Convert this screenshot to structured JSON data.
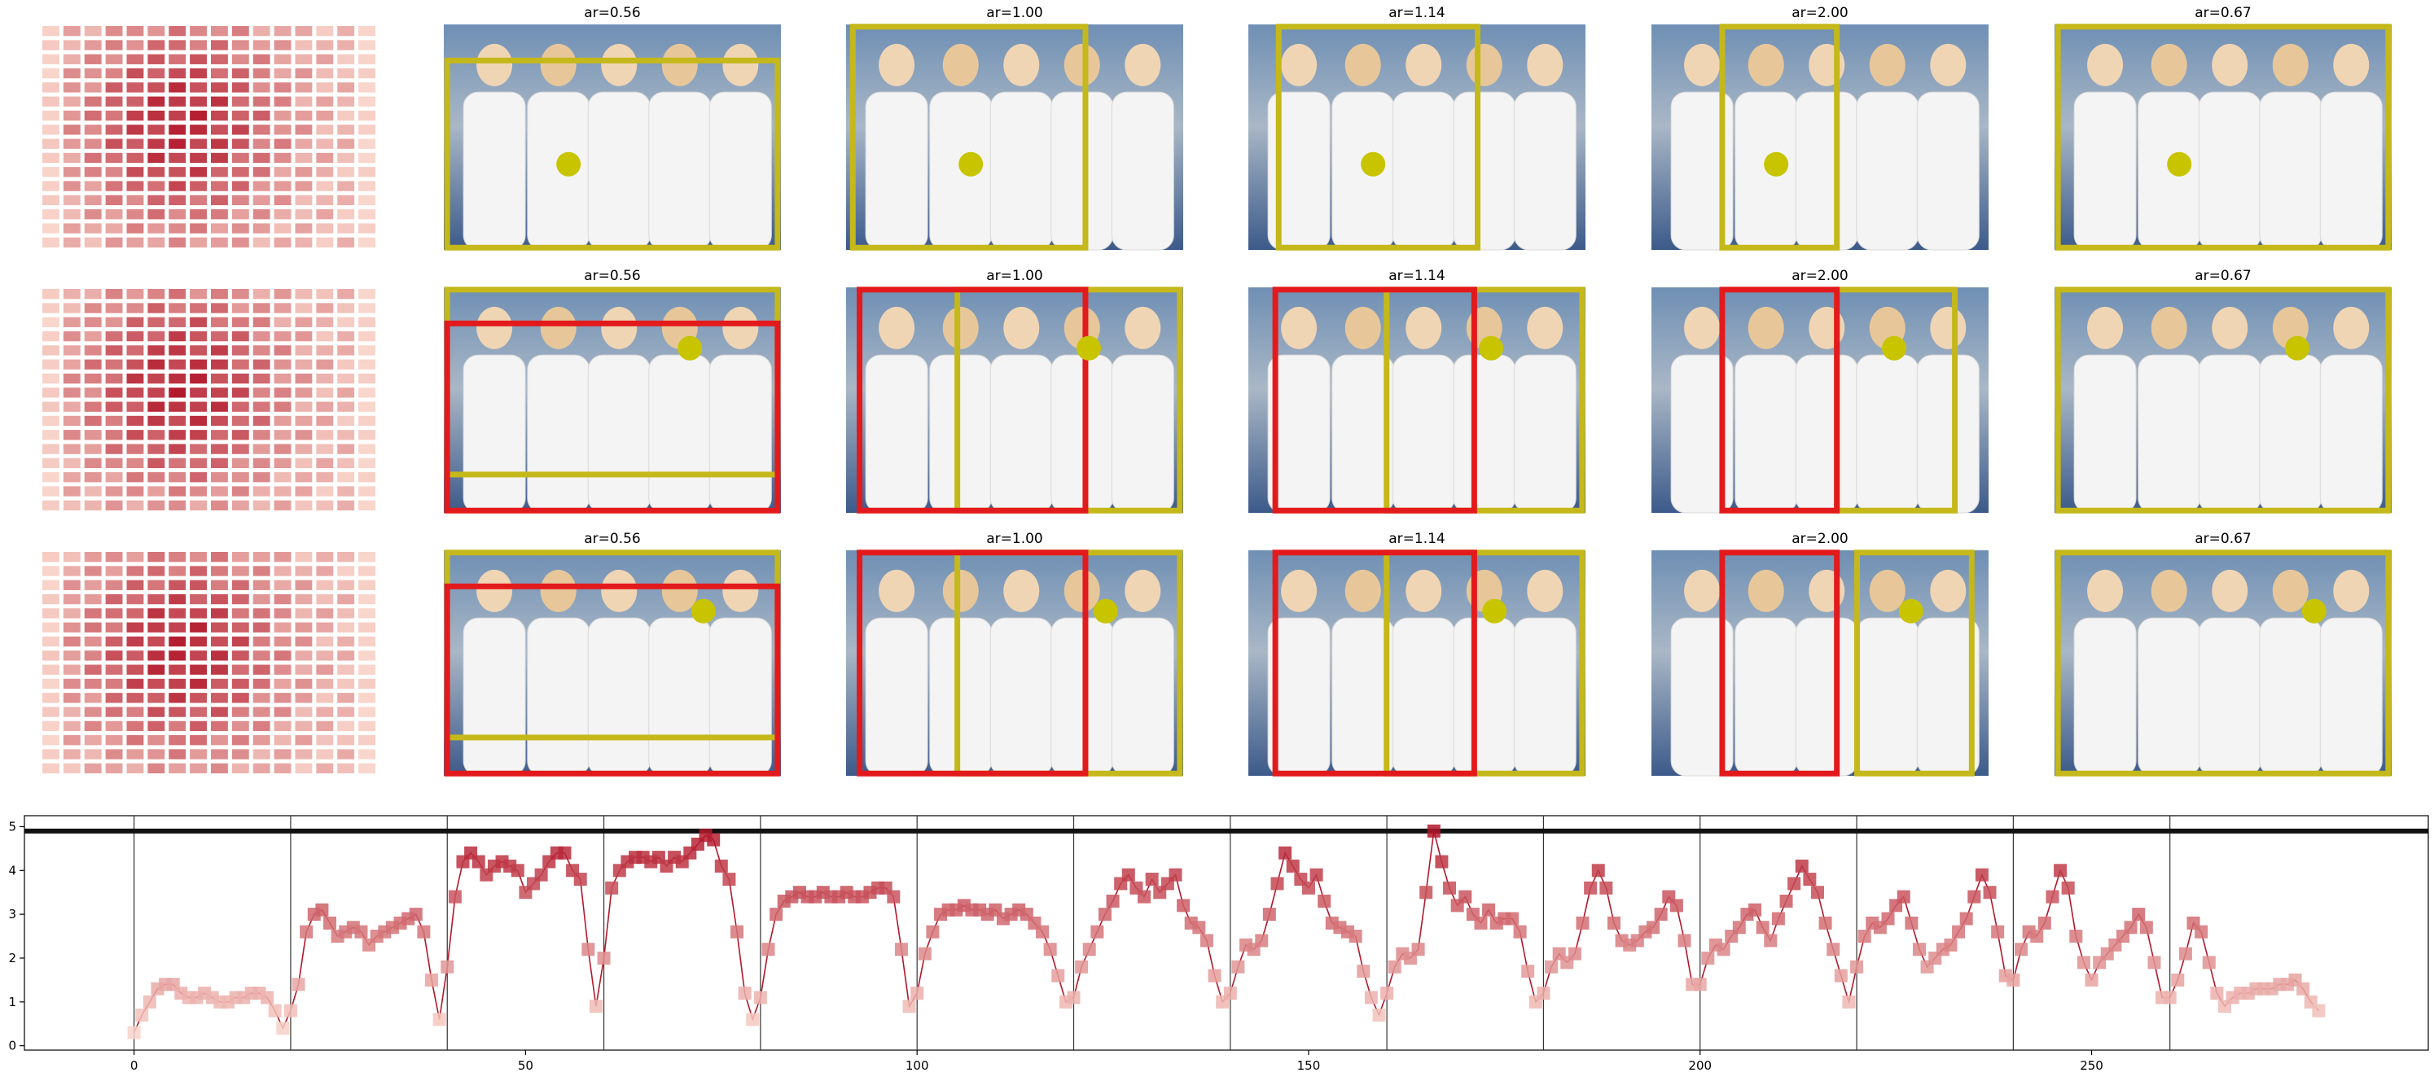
{
  "figure": {
    "ar_titles": [
      [
        "ar=0.56",
        "ar=1.00",
        "ar=1.14",
        "ar=2.00",
        "ar=0.67"
      ],
      [
        "ar=0.56",
        "ar=1.00",
        "ar=1.14",
        "ar=2.00",
        "ar=0.67"
      ],
      [
        "ar=0.56",
        "ar=1.00",
        "ar=1.14",
        "ar=2.00",
        "ar=0.67"
      ]
    ],
    "heatmap_grid": "16x16",
    "colors": {
      "heat_low": "#fde0d4",
      "heat_high": "#b2182b",
      "box_yellow": "#c4b81a",
      "box_red": "#e31a1c",
      "point_yellow": "#c8c400",
      "line": "#b2182b"
    }
  },
  "chart_data": {
    "type": "line",
    "x_ticks": [
      0,
      50,
      100,
      150,
      200,
      250
    ],
    "y_ticks": [
      0,
      1,
      2,
      3,
      4,
      5
    ],
    "xlim": [
      -14,
      293
    ],
    "ylim": [
      -0.1,
      5.25
    ],
    "reference_line_y": 4.9,
    "segment_separators": [
      0,
      20,
      40,
      60,
      80,
      100,
      120,
      140,
      160,
      180,
      200,
      220,
      240,
      260
    ],
    "segments": [
      [
        0.3,
        0.7,
        1.0,
        1.3,
        1.4,
        1.4,
        1.2,
        1.1,
        1.1,
        1.2,
        1.1,
        1.0,
        1.0,
        1.1,
        1.1,
        1.2,
        1.2,
        1.1,
        0.8,
        0.4
      ],
      [
        0.8,
        1.4,
        2.6,
        3.0,
        3.1,
        2.8,
        2.5,
        2.6,
        2.7,
        2.6,
        2.3,
        2.5,
        2.6,
        2.7,
        2.8,
        2.9,
        3.0,
        2.6,
        1.5,
        0.6
      ],
      [
        1.8,
        3.4,
        4.2,
        4.4,
        4.2,
        3.9,
        4.1,
        4.2,
        4.1,
        4.0,
        3.5,
        3.7,
        3.9,
        4.2,
        4.4,
        4.4,
        4.0,
        3.8,
        2.2,
        0.9
      ],
      [
        2.0,
        3.6,
        4.0,
        4.2,
        4.3,
        4.3,
        4.2,
        4.3,
        4.1,
        4.3,
        4.2,
        4.4,
        4.6,
        4.8,
        4.7,
        4.1,
        3.8,
        2.6,
        1.2,
        0.6
      ],
      [
        1.1,
        2.2,
        3.0,
        3.3,
        3.4,
        3.5,
        3.4,
        3.4,
        3.5,
        3.4,
        3.4,
        3.5,
        3.4,
        3.4,
        3.5,
        3.6,
        3.6,
        3.4,
        2.2,
        0.9
      ],
      [
        1.2,
        2.1,
        2.6,
        3.0,
        3.1,
        3.1,
        3.2,
        3.1,
        3.1,
        3.0,
        3.1,
        2.9,
        3.0,
        3.1,
        3.0,
        2.8,
        2.6,
        2.2,
        1.6,
        1.0
      ],
      [
        1.1,
        1.8,
        2.2,
        2.6,
        3.0,
        3.3,
        3.7,
        3.9,
        3.6,
        3.4,
        3.8,
        3.5,
        3.7,
        3.9,
        3.2,
        2.8,
        2.7,
        2.4,
        1.6,
        1.0
      ],
      [
        1.2,
        1.8,
        2.3,
        2.2,
        2.4,
        3.0,
        3.7,
        4.4,
        4.1,
        3.8,
        3.6,
        3.9,
        3.3,
        2.8,
        2.7,
        2.6,
        2.5,
        1.7,
        1.1,
        0.7
      ],
      [
        1.2,
        1.8,
        2.1,
        2.0,
        2.2,
        3.5,
        4.9,
        4.2,
        3.6,
        3.2,
        3.4,
        3.0,
        2.8,
        3.1,
        2.8,
        2.9,
        2.9,
        2.6,
        1.7,
        1.0
      ],
      [
        1.2,
        1.8,
        2.1,
        1.9,
        2.1,
        2.8,
        3.6,
        4.0,
        3.6,
        2.8,
        2.4,
        2.3,
        2.4,
        2.6,
        2.7,
        3.0,
        3.4,
        3.2,
        2.4,
        1.4
      ],
      [
        1.4,
        2.0,
        2.3,
        2.2,
        2.5,
        2.7,
        3.0,
        3.1,
        2.7,
        2.4,
        2.9,
        3.3,
        3.7,
        4.1,
        3.8,
        3.5,
        2.8,
        2.2,
        1.6,
        1.0
      ],
      [
        1.8,
        2.5,
        2.8,
        2.7,
        2.9,
        3.2,
        3.4,
        2.8,
        2.2,
        1.8,
        2.0,
        2.2,
        2.3,
        2.6,
        2.9,
        3.4,
        3.9,
        3.5,
        2.6,
        1.6
      ],
      [
        1.5,
        2.2,
        2.6,
        2.5,
        2.8,
        3.4,
        4.0,
        3.6,
        2.5,
        1.9,
        1.5,
        1.9,
        2.1,
        2.3,
        2.5,
        2.7,
        3.0,
        2.7,
        1.9,
        1.1
      ],
      [
        1.1,
        1.5,
        2.1,
        2.8,
        2.6,
        1.9,
        1.2,
        0.9,
        1.1,
        1.2,
        1.2,
        1.3,
        1.3,
        1.3,
        1.4,
        1.4,
        1.5,
        1.3,
        1.0,
        0.8
      ]
    ]
  }
}
